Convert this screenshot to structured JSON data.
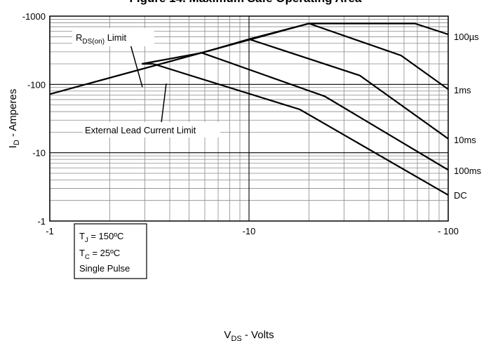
{
  "title": "Figure 14. Maximum Safe Operating Area",
  "chart_data": {
    "type": "line",
    "xscale": "log",
    "yscale": "log",
    "xlabel": "V",
    "xlabel_sub": "DS",
    "xlabel_rest": " - Volts",
    "ylabel": "I",
    "ylabel_sub": "D",
    "ylabel_rest": " - Amperes",
    "xlim": [
      -1,
      -100
    ],
    "ylim": [
      -1,
      -1000
    ],
    "xticks": [
      -1,
      -10,
      -100
    ],
    "xtick_labels": [
      "-1",
      "-10",
      "- 100"
    ],
    "yticks": [
      -1,
      -10,
      -100,
      -1000
    ],
    "ytick_labels": [
      "-1",
      "-10",
      "-100",
      "-1000"
    ],
    "grid": true,
    "series": [
      {
        "name": "100µs",
        "points": [
          [
            -2.9,
            -200
          ],
          [
            -5.8,
            -290
          ],
          [
            -10,
            -460
          ],
          [
            -20,
            -780
          ],
          [
            -68,
            -780
          ],
          [
            -100,
            -540
          ]
        ]
      },
      {
        "name": "1ms",
        "points": [
          [
            -20,
            -780
          ],
          [
            -58,
            -265
          ],
          [
            -100,
            -85
          ]
        ]
      },
      {
        "name": "10ms",
        "points": [
          [
            -10,
            -460
          ],
          [
            -36,
            -135
          ],
          [
            -100,
            -16
          ]
        ]
      },
      {
        "name": "100ms",
        "points": [
          [
            -5.8,
            -290
          ],
          [
            -24,
            -67
          ],
          [
            -100,
            -5.6
          ]
        ]
      },
      {
        "name": "DC",
        "points": [
          [
            -3.3,
            -200
          ],
          [
            -18,
            -43
          ],
          [
            -100,
            -2.4
          ]
        ]
      },
      {
        "name": "RDS(on) Limit",
        "points": [
          [
            -1,
            -72
          ],
          [
            -20,
            -780
          ]
        ]
      },
      {
        "name": "External Lead Current Limit",
        "points": [
          [
            -2.9,
            -200
          ],
          [
            -3.3,
            -200
          ]
        ]
      }
    ],
    "annotations": {
      "rds_main": "R",
      "rds_sub": "DS(on)",
      "rds_rest": " Limit",
      "ext_lead": "External Lead Current Limit",
      "tj_main": "T",
      "tj_sub": "J",
      "tj_rest": " = 150ºC",
      "tc_main": "T",
      "tc_sub": "C",
      "tc_rest": " = 25ºC",
      "single_pulse": "Single Pulse"
    }
  }
}
